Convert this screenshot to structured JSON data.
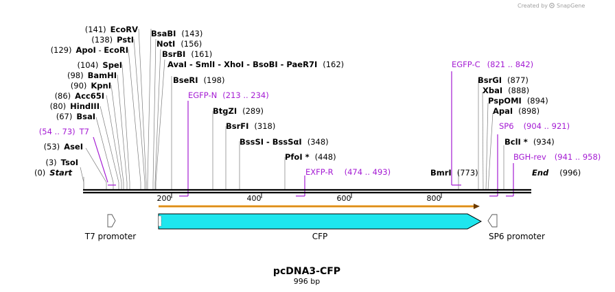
{
  "credit": {
    "text": "Created by",
    "brand": "SnapGene"
  },
  "map": {
    "name": "pcDNA3-CFP",
    "length_label": "996 bp",
    "length": 996
  },
  "ticks": [
    "200",
    "400",
    "600",
    "800"
  ],
  "ends": {
    "start": {
      "pos": "(0)",
      "name": "Start"
    },
    "end": {
      "name": "End",
      "pos": "(996)"
    }
  },
  "sites": [
    {
      "pos": "(3)",
      "name": "TsoI"
    },
    {
      "pos": "(53)",
      "name": "AseI"
    },
    {
      "pos": "(67)",
      "name": "BsaI"
    },
    {
      "pos": "(80)",
      "name": "HindIII"
    },
    {
      "pos": "(86)",
      "name": "Acc65I"
    },
    {
      "pos": "(90)",
      "name": "KpnI"
    },
    {
      "pos": "(98)",
      "name": "BamHI"
    },
    {
      "pos": "(104)",
      "name": "SpeI"
    },
    {
      "pos": "(129)",
      "name": "ApoI",
      "sep": " - ",
      "name2": "EcoRI"
    },
    {
      "pos": "(138)",
      "name": "PstI"
    },
    {
      "pos": "(141)",
      "name": "EcoRV"
    },
    {
      "name": "BsaBI",
      "pos": "(143)"
    },
    {
      "name": "NotI",
      "pos": "(156)"
    },
    {
      "name": "BsrBI",
      "pos": "(161)"
    },
    {
      "name": "AvaI - SmlI - XhoI - BsoBI - PaeR7I",
      "pos": "(162)"
    },
    {
      "name": "BseRI",
      "pos": "(198)"
    },
    {
      "name": "BtgZI",
      "pos": "(289)"
    },
    {
      "name": "BsrFI",
      "pos": "(318)"
    },
    {
      "name": "BssSI - BssSαI",
      "pos": "(348)"
    },
    {
      "name": "PfoI *",
      "pos": "(448)"
    },
    {
      "name": "BmrI",
      "pos": "(773)"
    },
    {
      "name": "BsrGI",
      "pos": "(877)"
    },
    {
      "name": "XbaI",
      "pos": "(888)"
    },
    {
      "name": "PspOMI",
      "pos": "(894)"
    },
    {
      "name": "ApaI",
      "pos": "(898)"
    },
    {
      "name": "BclI *",
      "pos": "(934)"
    }
  ],
  "primers": [
    {
      "name": "T7",
      "range": "(54 .. 73)"
    },
    {
      "name": "EGFP-N",
      "range": "(213 .. 234)"
    },
    {
      "name": "EXFP-R",
      "range": "(474 .. 493)"
    },
    {
      "name": "EGFP-C",
      "range": "(821 .. 842)"
    },
    {
      "name": "SP6",
      "range": "(904 .. 921)"
    },
    {
      "name": "BGH-rev",
      "range": "(941 .. 958)"
    }
  ],
  "features": [
    {
      "name": "T7 promoter"
    },
    {
      "name": "CFP"
    },
    {
      "name": "SP6 promoter"
    }
  ],
  "colors": {
    "primer": "#a41ad3",
    "cfp_fill": "#1ee6ee",
    "orf": "#f0a020",
    "line": "#7a7a7a"
  }
}
